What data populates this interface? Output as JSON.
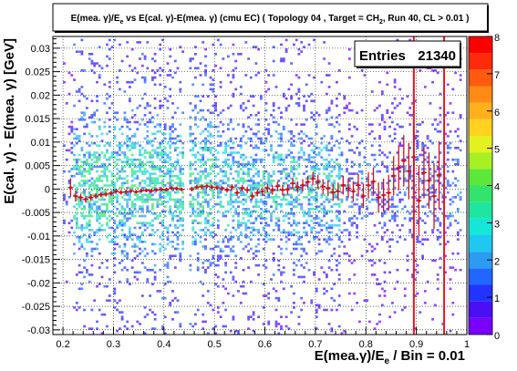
{
  "chart_data": {
    "type": "heatmap",
    "title_parts": {
      "a": "E(mea. ",
      "greek_gamma": "γ",
      "b": ")/E",
      "sub_e": "e",
      "c": " vs E(cal. ",
      "d": ")-E(mea. ",
      "e": ") (cmu EC) ( Topology 04 , Target = CH",
      "sub_2": "2",
      "f": ", Run 40, CL > 0.01 )"
    },
    "xlabel_parts": {
      "a": "E(mea.",
      "greek_gamma": "γ",
      "b": ")/E",
      "sub_e": "e",
      "c": " / Bin = 0.01"
    },
    "ylabel": "E(cal. γ) - E(mea. γ) [GeV]",
    "stats": {
      "label": "Entries",
      "value": "21340"
    },
    "xlim": [
      0.18,
      1.0
    ],
    "ylim": [
      -0.031,
      0.0325
    ],
    "x_ticks": [
      0.2,
      0.3,
      0.4,
      0.5,
      0.6,
      0.7,
      0.8,
      0.9,
      1.0
    ],
    "x_tick_labels": [
      "0.2",
      "0.3",
      "0.4",
      "0.5",
      "0.6",
      "0.7",
      "0.8",
      "0.9",
      "1"
    ],
    "y_ticks": [
      -0.03,
      -0.025,
      -0.02,
      -0.015,
      -0.01,
      -0.005,
      0,
      0.005,
      0.01,
      0.015,
      0.02,
      0.025,
      0.03
    ],
    "y_tick_labels": [
      "-0.03",
      "-0.025",
      "-0.02",
      "-0.015",
      "-0.01",
      "-0.005",
      "0",
      "0.005",
      "0.01",
      "0.015",
      "0.02",
      "0.025",
      "0.03"
    ],
    "grid": true,
    "zlim": [
      0,
      8
    ],
    "z_ticks": [
      0,
      1,
      2,
      3,
      4,
      5,
      6,
      7,
      8
    ],
    "z_tick_labels": [
      "0",
      "1",
      "2",
      "3",
      "4",
      "5",
      "6",
      "7",
      "8"
    ],
    "palette": [
      "#7a00ff",
      "#4b0ff5",
      "#2233ff",
      "#2266ff",
      "#2b9cf2",
      "#1fc8f0",
      "#14e6d8",
      "#1ee6a0",
      "#33e36b",
      "#5ce83a",
      "#a8ef23",
      "#e3f21f",
      "#ffd21f",
      "#ffb01a",
      "#ff8a14",
      "#ff5a10",
      "#ff2a0a",
      "#ff0000"
    ],
    "vertical_lines_x": [
      0.895,
      0.955
    ],
    "vertical_line_color": "#e8141e",
    "profile_color": "#d40f1f",
    "profile": {
      "x": [
        0.215,
        0.225,
        0.235,
        0.245,
        0.255,
        0.265,
        0.275,
        0.285,
        0.295,
        0.305,
        0.315,
        0.325,
        0.335,
        0.345,
        0.355,
        0.365,
        0.375,
        0.385,
        0.395,
        0.405,
        0.415,
        0.425,
        0.435,
        0.455,
        0.465,
        0.475,
        0.485,
        0.495,
        0.505,
        0.515,
        0.525,
        0.535,
        0.545,
        0.555,
        0.565,
        0.575,
        0.585,
        0.595,
        0.605,
        0.615,
        0.625,
        0.635,
        0.645,
        0.655,
        0.665,
        0.675,
        0.685,
        0.695,
        0.705,
        0.715,
        0.725,
        0.735,
        0.745,
        0.755,
        0.765,
        0.775,
        0.785,
        0.795,
        0.805,
        0.815,
        0.825,
        0.835,
        0.845,
        0.855,
        0.865,
        0.875,
        0.885,
        0.895,
        0.905,
        0.915,
        0.925,
        0.935,
        0.945
      ],
      "y": [
        0.0003,
        -0.0015,
        -0.0018,
        -0.0022,
        -0.0018,
        -0.0015,
        -0.0012,
        -0.0011,
        -0.0009,
        -0.0005,
        -0.0007,
        -0.0006,
        -0.0004,
        -0.0006,
        -0.0004,
        -0.0003,
        -0.0004,
        -0.0002,
        -0.0001,
        -0.0001,
        0.0002,
        0.0001,
        -0.0001,
        0.0,
        0.0004,
        0.0005,
        0.0006,
        0.0004,
        0.0003,
        0.0001,
        -0.0002,
        0.0004,
        -0.0008,
        0.0002,
        -0.0002,
        -0.0015,
        -0.0008,
        -0.0005,
        0.0002,
        -0.0002,
        0.0006,
        -0.0002,
        -0.0001,
        0.0012,
        0.0004,
        0.0008,
        0.0015,
        0.0022,
        0.0015,
        0.0005,
        0.0002,
        -0.0007,
        -0.0005,
        0.0008,
        0.0002,
        -0.0005,
        0.0008,
        -0.0015,
        0.0008,
        0.0016,
        -0.0018,
        -0.0013,
        -0.0008,
        0.0028,
        0.0045,
        0.006,
        0.0038,
        0.0068,
        -0.0025,
        0.0035,
        0.0018,
        -0.0015,
        0.003
      ],
      "yerr": [
        0.002,
        0.0012,
        0.0008,
        0.0007,
        0.0007,
        0.0006,
        0.0005,
        0.0005,
        0.0005,
        0.0005,
        0.0005,
        0.0005,
        0.0004,
        0.0004,
        0.0004,
        0.0004,
        0.0004,
        0.0004,
        0.0004,
        0.0004,
        0.0004,
        0.0004,
        0.0004,
        0.0005,
        0.0005,
        0.0005,
        0.0005,
        0.0005,
        0.0005,
        0.0005,
        0.0006,
        0.0006,
        0.0007,
        0.0007,
        0.0007,
        0.0008,
        0.0008,
        0.0009,
        0.0009,
        0.001,
        0.001,
        0.0011,
        0.0011,
        0.0012,
        0.0012,
        0.0013,
        0.0013,
        0.0014,
        0.0015,
        0.0016,
        0.0017,
        0.0018,
        0.0019,
        0.002,
        0.0021,
        0.0022,
        0.0024,
        0.0026,
        0.0028,
        0.003,
        0.0032,
        0.0035,
        0.0038,
        0.0042,
        0.0048,
        0.0055,
        0.006,
        0.007,
        0.0075,
        0.0055,
        0.006,
        0.007,
        0.0072
      ]
    }
  }
}
